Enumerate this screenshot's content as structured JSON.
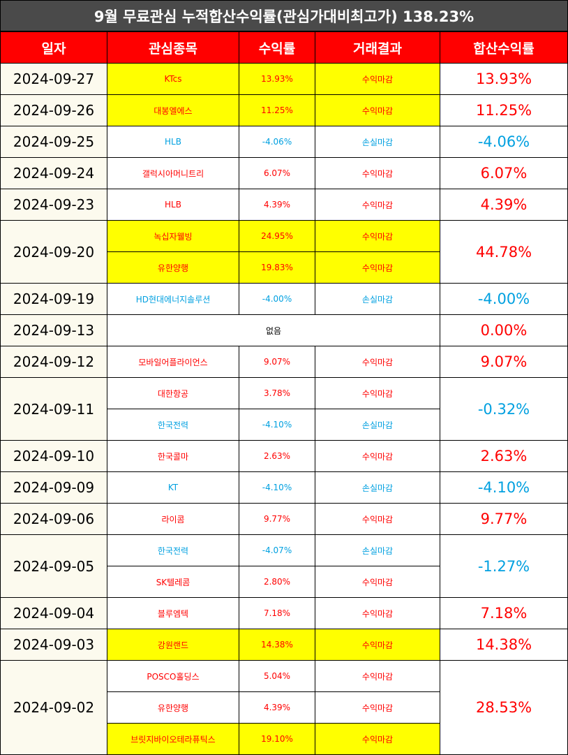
{
  "title": "9월 무료관심 누적합산수익률(관심가대비최고가) 138.23%",
  "headers": [
    "일자",
    "관심종목",
    "수익률",
    "거래결과",
    "합산수익률"
  ],
  "groups": [
    {
      "date": "2024-09-27",
      "total": "13.93%",
      "total_color": "red",
      "items": [
        {
          "stock": "KTcs",
          "rate": "13.93%",
          "result": "수익마감",
          "color": "red",
          "highlight": true
        }
      ]
    },
    {
      "date": "2024-09-26",
      "total": "11.25%",
      "total_color": "red",
      "items": [
        {
          "stock": "대봉엘에스",
          "rate": "11.25%",
          "result": "수익마감",
          "color": "red",
          "highlight": true
        }
      ]
    },
    {
      "date": "2024-09-25",
      "total": "-4.06%",
      "total_color": "blue",
      "items": [
        {
          "stock": "HLB",
          "rate": "-4.06%",
          "result": "손실마감",
          "color": "blue",
          "highlight": false
        }
      ]
    },
    {
      "date": "2024-09-24",
      "total": "6.07%",
      "total_color": "red",
      "items": [
        {
          "stock": "갤럭시아머니트리",
          "rate": "6.07%",
          "result": "수익마감",
          "color": "red",
          "highlight": false
        }
      ]
    },
    {
      "date": "2024-09-23",
      "total": "4.39%",
      "total_color": "red",
      "items": [
        {
          "stock": "HLB",
          "rate": "4.39%",
          "result": "수익마감",
          "color": "red",
          "highlight": false
        }
      ]
    },
    {
      "date": "2024-09-20",
      "total": "44.78%",
      "total_color": "red",
      "items": [
        {
          "stock": "녹십자웰빙",
          "rate": "24.95%",
          "result": "수익마감",
          "color": "red",
          "highlight": true
        },
        {
          "stock": "유한양행",
          "rate": "19.83%",
          "result": "수익마감",
          "color": "red",
          "highlight": true
        }
      ]
    },
    {
      "date": "2024-09-19",
      "total": "-4.00%",
      "total_color": "blue",
      "items": [
        {
          "stock": "HD현대에너지솔루션",
          "rate": "-4.00%",
          "result": "손실마감",
          "color": "blue",
          "highlight": false
        }
      ]
    },
    {
      "date": "2024-09-13",
      "total": "0.00%",
      "total_color": "red",
      "none": "없음",
      "items": []
    },
    {
      "date": "2024-09-12",
      "total": "9.07%",
      "total_color": "red",
      "items": [
        {
          "stock": "모바일어플라이언스",
          "rate": "9.07%",
          "result": "수익마감",
          "color": "red",
          "highlight": false
        }
      ]
    },
    {
      "date": "2024-09-11",
      "total": "-0.32%",
      "total_color": "blue",
      "items": [
        {
          "stock": "대한항공",
          "rate": "3.78%",
          "result": "수익마감",
          "color": "red",
          "highlight": false
        },
        {
          "stock": "한국전력",
          "rate": "-4.10%",
          "result": "손실마감",
          "color": "blue",
          "highlight": false
        }
      ]
    },
    {
      "date": "2024-09-10",
      "total": "2.63%",
      "total_color": "red",
      "items": [
        {
          "stock": "한국콜마",
          "rate": "2.63%",
          "result": "수익마감",
          "color": "red",
          "highlight": false
        }
      ]
    },
    {
      "date": "2024-09-09",
      "total": "-4.10%",
      "total_color": "blue",
      "items": [
        {
          "stock": "KT",
          "rate": "-4.10%",
          "result": "손실마감",
          "color": "blue",
          "highlight": false
        }
      ]
    },
    {
      "date": "2024-09-06",
      "total": "9.77%",
      "total_color": "red",
      "items": [
        {
          "stock": "라이콤",
          "rate": "9.77%",
          "result": "수익마감",
          "color": "red",
          "highlight": false
        }
      ]
    },
    {
      "date": "2024-09-05",
      "total": "-1.27%",
      "total_color": "blue",
      "items": [
        {
          "stock": "한국전력",
          "rate": "-4.07%",
          "result": "손실마감",
          "color": "blue",
          "highlight": false
        },
        {
          "stock": "SK텔레콤",
          "rate": "2.80%",
          "result": "수익마감",
          "color": "red",
          "highlight": false
        }
      ]
    },
    {
      "date": "2024-09-04",
      "total": "7.18%",
      "total_color": "red",
      "items": [
        {
          "stock": "블루엠텍",
          "rate": "7.18%",
          "result": "수익마감",
          "color": "red",
          "highlight": false
        }
      ]
    },
    {
      "date": "2024-09-03",
      "total": "14.38%",
      "total_color": "red",
      "items": [
        {
          "stock": "강원랜드",
          "rate": "14.38%",
          "result": "수익마감",
          "color": "red",
          "highlight": true
        }
      ]
    },
    {
      "date": "2024-09-02",
      "total": "28.53%",
      "total_color": "red",
      "items": [
        {
          "stock": "POSCO홀딩스",
          "rate": "5.04%",
          "result": "수익마감",
          "color": "red",
          "highlight": false
        },
        {
          "stock": "유한양행",
          "rate": "4.39%",
          "result": "수익마감",
          "color": "red",
          "highlight": false
        },
        {
          "stock": "브릿지바이오테라퓨틱스",
          "rate": "19.10%",
          "result": "수익마감",
          "color": "red",
          "highlight": true
        }
      ]
    }
  ]
}
